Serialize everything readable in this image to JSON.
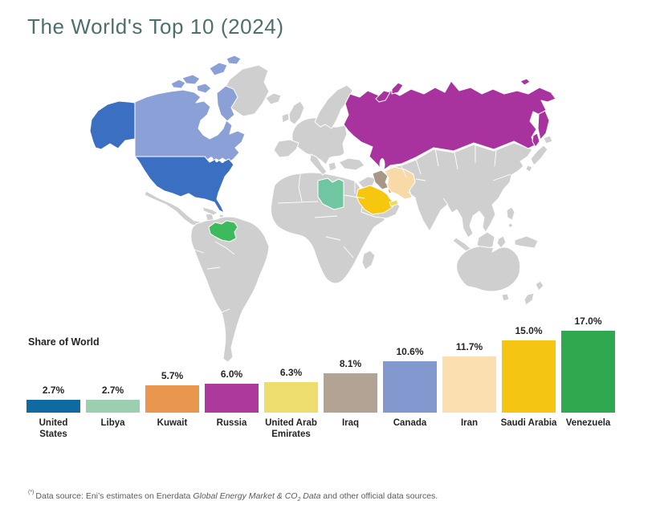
{
  "title": "The World's Top 10 (2024)",
  "theme": {
    "background": "#FFFFFF",
    "title_color": "#4E6F6B",
    "text_dark": "#242424",
    "footnote_color": "#5A5A5A",
    "land_color": "#CFCFCF",
    "map_border_color": "#FFFFFF"
  },
  "map": {
    "highlighted_countries": [
      "United States",
      "Canada",
      "Russia",
      "Venezuela",
      "Libya",
      "Iraq",
      "Kuwait",
      "Iran",
      "Saudi Arabia",
      "United Arab Emirates"
    ],
    "country_colors": {
      "united_states": "#3A6FC2",
      "canada": "#8CA0D8",
      "russia": "#A8339E",
      "venezuela": "#3DBB5C",
      "libya": "#6FC6A1",
      "iraq": "#A89786",
      "kuwait": "#E8964A",
      "iran": "#F8D9A8",
      "saudi_arabia": "#F7C70F",
      "united_arab_emirates": "#EDD95A"
    }
  },
  "chart_data": {
    "type": "bar",
    "title": "Share of World",
    "categories": [
      "United States",
      "Libya",
      "Kuwait",
      "Russia",
      "United Arab Emirates",
      "Iraq",
      "Canada",
      "Iran",
      "Saudi Arabia",
      "Venezuela"
    ],
    "values": [
      2.7,
      2.7,
      5.7,
      6.0,
      6.3,
      8.1,
      10.6,
      11.7,
      15.0,
      17.0
    ],
    "value_labels": [
      "2.7%",
      "2.7%",
      "5.7%",
      "6.0%",
      "6.3%",
      "8.1%",
      "10.6%",
      "11.7%",
      "15.0%",
      "17.0%"
    ],
    "label_lines": [
      [
        "United",
        "States"
      ],
      [
        "Libya"
      ],
      [
        "Kuwait"
      ],
      [
        "Russia"
      ],
      [
        "United Arab",
        "Emirates"
      ],
      [
        "Iraq"
      ],
      [
        "Canada"
      ],
      [
        "Iran"
      ],
      [
        "Saudi Arabia"
      ],
      [
        "Venezuela"
      ]
    ],
    "bar_colors": [
      "#0F6AA2",
      "#9CCFB0",
      "#E9964E",
      "#AB3A9C",
      "#EDDD6C",
      "#B3A394",
      "#8298CE",
      "#FBDFB1",
      "#F5C513",
      "#2FA84F"
    ],
    "xlabel": "",
    "ylabel": "Share of World",
    "ylim": [
      0,
      17
    ],
    "grid": false,
    "legend": "none"
  },
  "footnote": {
    "marker": "(*)",
    "text_before": "Data source: Eni’s estimates on Enerdata ",
    "italic_1": "Global Energy Market & CO",
    "subscript": "2",
    "italic_2": " Data",
    "text_after": " and other official data sources."
  }
}
